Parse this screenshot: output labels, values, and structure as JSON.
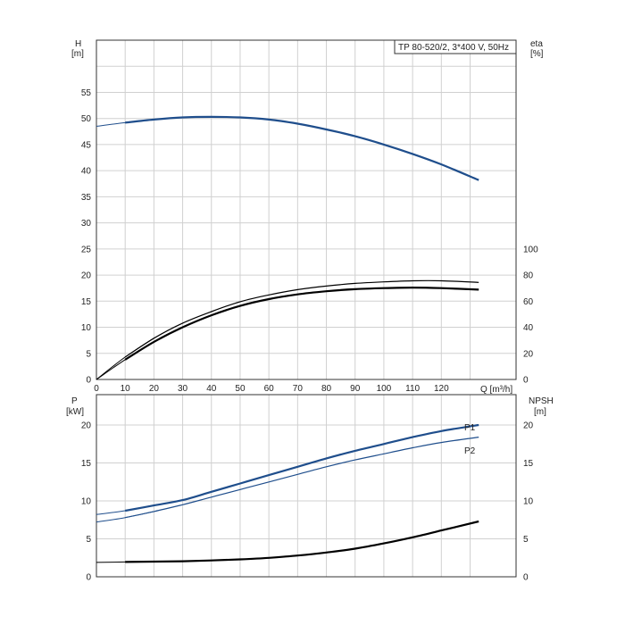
{
  "chart_data": [
    {
      "type": "line",
      "title": "TP 80-520/2, 3*400 V, 50Hz",
      "xlabel": "Q [m³/h]",
      "ylabel_left": "H",
      "ylabel_left_unit": "[m]",
      "ylabel_right": "eta",
      "ylabel_right_unit": "[%]",
      "xlim": [
        0,
        146
      ],
      "ylim_left": [
        0,
        65
      ],
      "ylim_right": [
        0,
        100
      ],
      "x_ticks": [
        0,
        10,
        20,
        30,
        40,
        50,
        60,
        70,
        80,
        90,
        100,
        110,
        120
      ],
      "y_ticks_left": [
        0,
        5,
        10,
        15,
        20,
        25,
        30,
        35,
        40,
        45,
        50,
        55
      ],
      "y_ticks_right": [
        0,
        20,
        40,
        60,
        80,
        100
      ],
      "grid": true,
      "series": [
        {
          "axis": "left",
          "color": "#1f4e8c",
          "x": [
            0,
            10,
            20,
            30,
            40,
            50,
            60,
            70,
            80,
            90,
            100,
            110,
            120,
            133
          ],
          "values": [
            48.5,
            49.2,
            49.8,
            50.2,
            50.3,
            50.2,
            49.8,
            49.0,
            47.9,
            46.6,
            45.0,
            43.2,
            41.2,
            38.2
          ]
        },
        {
          "axis": "left",
          "color": "#000000",
          "x": [
            0,
            10,
            20,
            30,
            40,
            50,
            60,
            70,
            80,
            90,
            100,
            110,
            120,
            133
          ],
          "values": [
            0,
            4.3,
            7.9,
            10.8,
            13.0,
            14.9,
            16.2,
            17.2,
            17.9,
            18.4,
            18.7,
            18.9,
            18.9,
            18.6
          ]
        },
        {
          "axis": "left",
          "color": "#000000",
          "x": [
            0,
            10,
            20,
            30,
            40,
            50,
            60,
            70,
            80,
            90,
            100,
            110,
            120,
            133
          ],
          "values": [
            0,
            3.8,
            7.2,
            10.0,
            12.3,
            14.1,
            15.4,
            16.3,
            16.9,
            17.3,
            17.5,
            17.6,
            17.5,
            17.2
          ]
        }
      ]
    },
    {
      "type": "line",
      "xlabel": "",
      "ylabel_left": "P",
      "ylabel_left_unit": "[kW]",
      "ylabel_right": "NPSH",
      "ylabel_right_unit": "[m]",
      "xlim": [
        0,
        146
      ],
      "ylim_left": [
        0,
        24
      ],
      "ylim_right": [
        0,
        24
      ],
      "y_ticks_left": [
        0,
        5,
        10,
        15,
        20
      ],
      "y_ticks_right": [
        0,
        5,
        10,
        15,
        20
      ],
      "grid": true,
      "series": [
        {
          "name": "P1",
          "axis": "left",
          "color": "#1f4e8c",
          "x": [
            0,
            10,
            20,
            30,
            40,
            50,
            60,
            70,
            80,
            90,
            100,
            110,
            120,
            133
          ],
          "values": [
            8.2,
            8.7,
            9.4,
            10.1,
            11.2,
            12.3,
            13.4,
            14.5,
            15.6,
            16.6,
            17.5,
            18.4,
            19.2,
            20.0
          ]
        },
        {
          "name": "P2",
          "axis": "left",
          "color": "#1f4e8c",
          "x": [
            0,
            10,
            20,
            30,
            40,
            50,
            60,
            70,
            80,
            90,
            100,
            110,
            120,
            133
          ],
          "values": [
            7.2,
            7.8,
            8.6,
            9.5,
            10.5,
            11.5,
            12.5,
            13.5,
            14.5,
            15.4,
            16.2,
            17.0,
            17.7,
            18.4
          ]
        },
        {
          "axis": "right",
          "color": "#000000",
          "x": [
            0,
            10,
            20,
            30,
            40,
            50,
            60,
            70,
            80,
            90,
            100,
            110,
            120,
            133
          ],
          "values": [
            1.9,
            1.95,
            2.0,
            2.05,
            2.15,
            2.3,
            2.5,
            2.8,
            3.2,
            3.7,
            4.4,
            5.2,
            6.1,
            7.3
          ]
        }
      ]
    }
  ]
}
